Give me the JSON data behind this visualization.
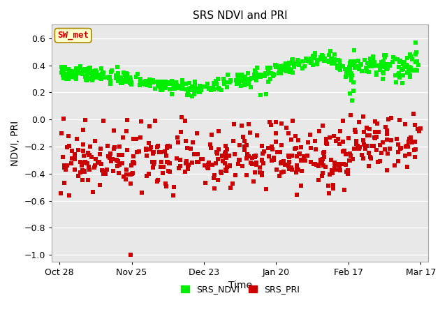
{
  "title": "SRS NDVI and PRI",
  "xlabel": "Time",
  "ylabel": "NDVI, PRI",
  "ylim": [
    -1.05,
    0.7
  ],
  "yticks": [
    0.6,
    0.4,
    0.2,
    0.0,
    -0.2,
    -0.4,
    -0.6,
    -0.8,
    -1.0
  ],
  "annotation_label": "SW_met",
  "annotation_color": "#cc0000",
  "annotation_bg": "#ffffcc",
  "annotation_border": "#aa8800",
  "ndvi_color": "#00ee00",
  "pri_color": "#cc0000",
  "marker_size": 18,
  "legend_labels": [
    "SRS_NDVI",
    "SRS_PRI"
  ],
  "fig_bg_color": "#ffffff",
  "axes_bg_color": "#e8e8e8",
  "grid_color": "#ffffff",
  "x_tick_labels": [
    "Oct 28",
    "Nov 25",
    "Dec 23",
    "Jan 20",
    "Feb 17",
    "Mar 17"
  ],
  "x_tick_positions": [
    0,
    28,
    56,
    84,
    112,
    140
  ]
}
